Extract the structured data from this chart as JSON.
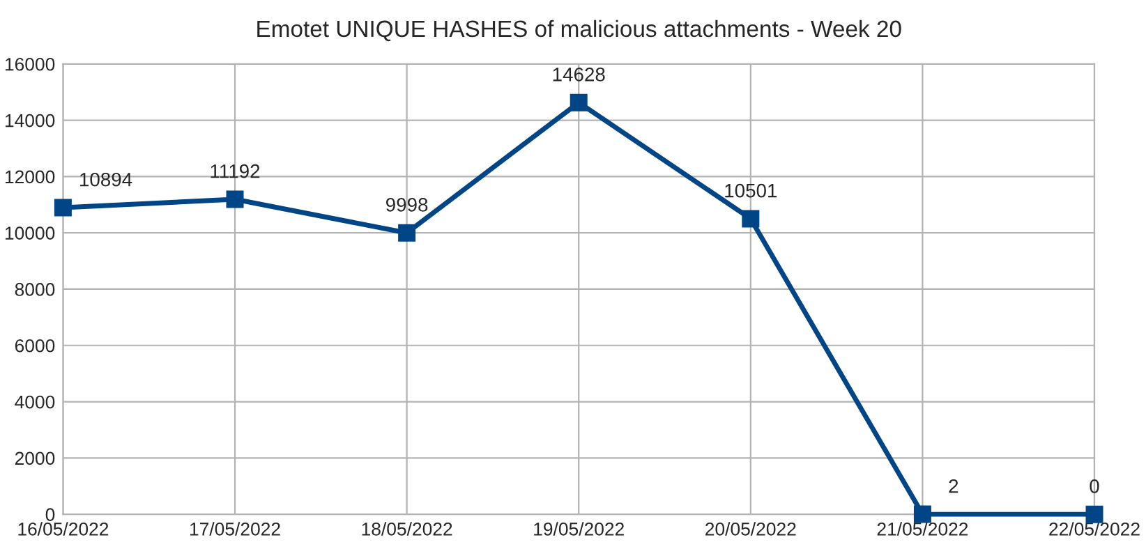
{
  "chart_data": {
    "type": "line",
    "title": "Emotet UNIQUE HASHES of malicious attachments - Week 20",
    "categories": [
      "16/05/2022",
      "17/05/2022",
      "18/05/2022",
      "19/05/2022",
      "20/05/2022",
      "21/05/2022",
      "22/05/2022"
    ],
    "series": [
      {
        "color": "#004586",
        "values": [
          10894,
          11192,
          9998,
          14628,
          10501,
          2,
          0
        ]
      }
    ],
    "ylim": [
      0,
      16000
    ],
    "yticks": [
      0,
      2000,
      4000,
      6000,
      8000,
      10000,
      12000,
      14000,
      16000
    ],
    "grid": true,
    "marker": "square",
    "line_style": "solid",
    "data_labels": true
  }
}
